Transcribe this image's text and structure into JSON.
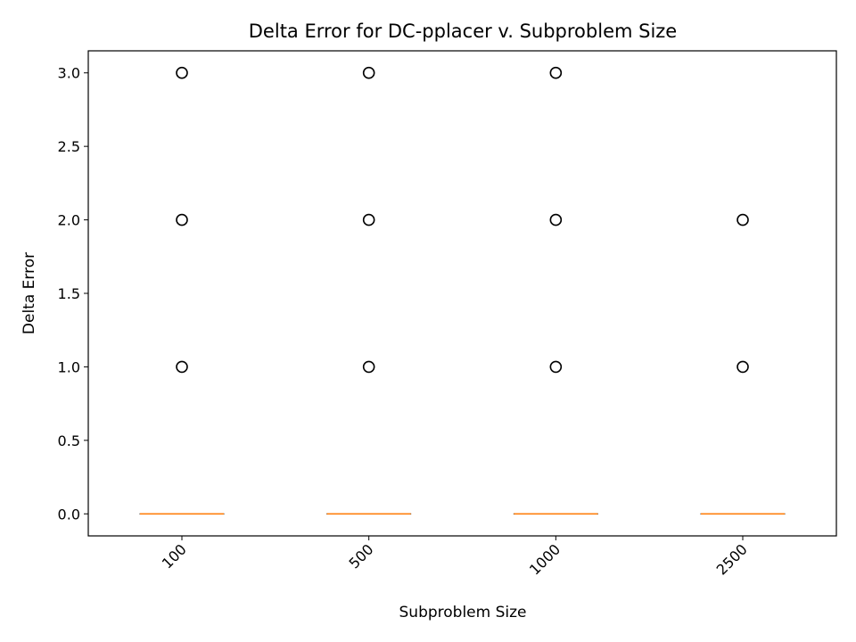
{
  "chart_data": {
    "type": "box",
    "title": "Delta Error for DC-pplacer v. Subproblem Size",
    "xlabel": "Subproblem Size",
    "ylabel": "Delta Error",
    "categories": [
      "100",
      "500",
      "1000",
      "2500"
    ],
    "ylim": [
      -0.15,
      3.15
    ],
    "yticks": [
      0.0,
      0.5,
      1.0,
      1.5,
      2.0,
      2.5,
      3.0
    ],
    "ytick_labels": [
      "0.0",
      "0.5",
      "1.0",
      "1.5",
      "2.0",
      "2.5",
      "3.0"
    ],
    "boxes": [
      {
        "category": "100",
        "median": 0,
        "q1": 0,
        "q3": 0,
        "whisker_low": 0,
        "whisker_high": 0,
        "outliers": [
          1,
          2,
          3
        ]
      },
      {
        "category": "500",
        "median": 0,
        "q1": 0,
        "q3": 0,
        "whisker_low": 0,
        "whisker_high": 0,
        "outliers": [
          1,
          2,
          3
        ]
      },
      {
        "category": "1000",
        "median": 0,
        "q1": 0,
        "q3": 0,
        "whisker_low": 0,
        "whisker_high": 0,
        "outliers": [
          1,
          2,
          3
        ]
      },
      {
        "category": "2500",
        "median": 0,
        "q1": 0,
        "q3": 0,
        "whisker_low": 0,
        "whisker_high": 0,
        "outliers": [
          1,
          2
        ]
      }
    ],
    "grid": false,
    "legend": "none",
    "colors": {
      "median": "#ff7f0e",
      "box": "#000000",
      "outlier_edge": "#000000"
    }
  }
}
